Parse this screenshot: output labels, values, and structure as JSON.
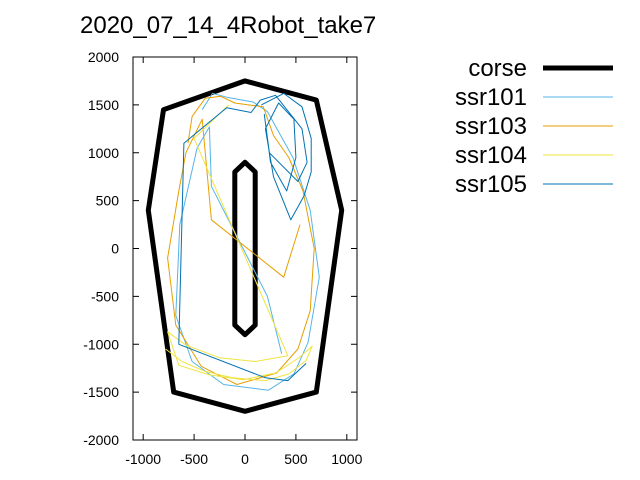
{
  "chart_data": {
    "type": "line",
    "title": "2020_07_14_4Robot_take7",
    "xlabel": "",
    "ylabel": "",
    "xlim": [
      -1100,
      1100
    ],
    "ylim": [
      -2000,
      2000
    ],
    "xticks": [
      -1000,
      -500,
      0,
      500,
      1000
    ],
    "yticks": [
      -2000,
      -1500,
      -1000,
      -500,
      0,
      500,
      1000,
      1500,
      2000
    ],
    "grid": false,
    "legend_position": "top-right",
    "series": [
      {
        "name": "corse",
        "color": "#000000",
        "closed": true,
        "x": [
          0,
          700,
          950,
          700,
          0,
          -700,
          -950,
          -800
        ],
        "y": [
          1750,
          1550,
          400,
          -1500,
          -1700,
          -1500,
          400,
          1450
        ]
      },
      {
        "name": "corse",
        "color": "#000000",
        "closed": true,
        "x": [
          -100,
          0,
          100,
          100,
          0,
          -100
        ],
        "y": [
          800,
          900,
          800,
          -800,
          -900,
          -800
        ]
      },
      {
        "name": "ssr101",
        "color": "#56b4e9",
        "closed": false,
        "x": [
          -420,
          -320,
          -180,
          80,
          220,
          470,
          640,
          730,
          620,
          480,
          230,
          -210,
          -520,
          -680,
          -640,
          -470,
          -350,
          -330,
          220,
          360
        ],
        "y": [
          1450,
          1620,
          1580,
          1530,
          1430,
          950,
          400,
          -300,
          -980,
          -1310,
          -1480,
          -1420,
          -1180,
          -700,
          250,
          1050,
          1270,
          650,
          -500,
          -1100
        ]
      },
      {
        "name": "ssr103",
        "color": "#e69f00",
        "closed": false,
        "x": [
          -560,
          -520,
          -390,
          -240,
          -100,
          180,
          280,
          430,
          570,
          680,
          640,
          520,
          310,
          -80,
          -430,
          -680,
          -760,
          -650,
          -580,
          -420,
          -330,
          380,
          540
        ],
        "y": [
          1100,
          1380,
          1570,
          1590,
          1520,
          1480,
          1180,
          950,
          600,
          0,
          -650,
          -1050,
          -1300,
          -1420,
          -1230,
          -800,
          -100,
          600,
          1000,
          1350,
          300,
          -300,
          250
        ]
      },
      {
        "name": "ssr104",
        "color": "#f0e442",
        "closed": false,
        "x": [
          -780,
          -620,
          -400,
          -120,
          200,
          430,
          600,
          660,
          520,
          300,
          -20,
          -350,
          -650,
          -760,
          -580,
          -250,
          100,
          420,
          -500,
          -160
        ],
        "y": [
          -1050,
          -1180,
          -1280,
          -1350,
          -1380,
          -1310,
          -1170,
          -1020,
          -1150,
          -1300,
          -1370,
          -1320,
          -1220,
          -870,
          -1010,
          -1140,
          -1180,
          -1120,
          1150,
          1500
        ]
      },
      {
        "name": "ssr105",
        "color": "#0072b2",
        "closed": false,
        "x": [
          160,
          380,
          560,
          650,
          650,
          580,
          450,
          280,
          200,
          330,
          480,
          500,
          410,
          250,
          190,
          240,
          520,
          610,
          560,
          300,
          150,
          60,
          -180,
          -600,
          -650,
          200,
          420,
          600
        ],
        "y": [
          1500,
          1620,
          1480,
          1150,
          800,
          550,
          300,
          750,
          1250,
          1520,
          1350,
          950,
          600,
          900,
          1400,
          1000,
          700,
          900,
          1250,
          1600,
          1550,
          1420,
          1470,
          1100,
          -1000,
          -1350,
          -1380,
          -1200
        ]
      }
    ]
  }
}
